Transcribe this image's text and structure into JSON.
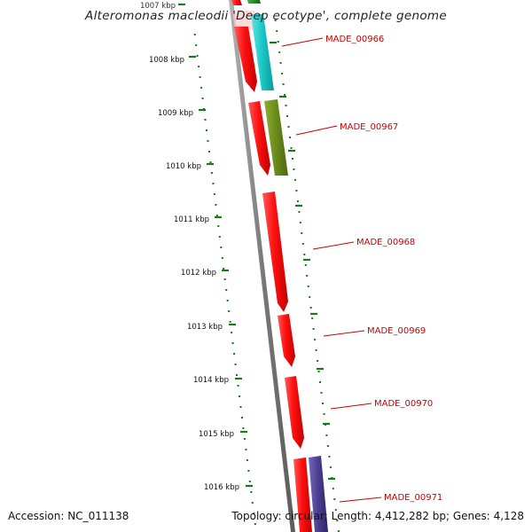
{
  "title": "Alteromonas macleodii 'Deep ecotype', complete genome",
  "accession": "Accession: NC_011138",
  "topology": "Topology: circular; Length: 4,412,282 bp; Genes: 4,128",
  "colors": {
    "backbone": "#8a8a8a",
    "tick": "#1a7a1a",
    "label": "#cc0000",
    "cds_red": "#ff1010",
    "cyan": "#19c6c6",
    "olive": "#6a8a1a",
    "purple": "#4a3d8f",
    "green_top": "#1a8a1a"
  },
  "scale": {
    "ticks": [
      {
        "label": "1007 kbp"
      },
      {
        "label": "1008 kbp"
      },
      {
        "label": "1009 kbp"
      },
      {
        "label": "1010 kbp"
      },
      {
        "label": "1011 kbp"
      },
      {
        "label": "1012 kbp"
      },
      {
        "label": "1013 kbp"
      },
      {
        "label": "1014 kbp"
      },
      {
        "label": "1015 kbp"
      },
      {
        "label": "1016 kbp"
      }
    ]
  },
  "genes": [
    {
      "label": "MADE_00966"
    },
    {
      "label": "MADE_00967"
    },
    {
      "label": "MADE_00968"
    },
    {
      "label": "MADE_00969"
    },
    {
      "label": "MADE_00970"
    },
    {
      "label": "MADE_00971"
    }
  ]
}
